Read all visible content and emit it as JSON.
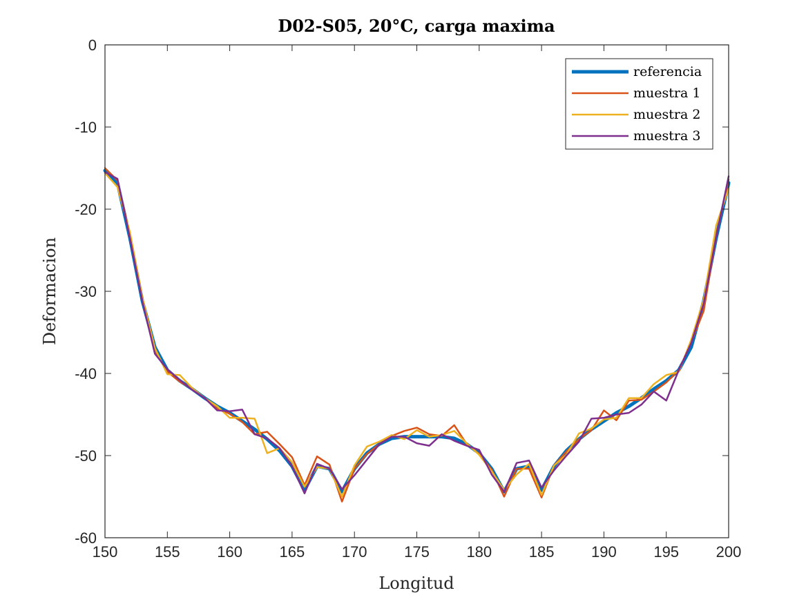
{
  "chart_data": {
    "type": "line",
    "title": "D02-S05, 20°C, carga maxima",
    "xlabel": "Longitud",
    "ylabel": "Deformacion",
    "xlim": [
      150,
      200
    ],
    "ylim": [
      -60,
      0
    ],
    "xticks": [
      150,
      155,
      160,
      165,
      170,
      175,
      180,
      185,
      190,
      195,
      200
    ],
    "yticks": [
      0,
      -10,
      -20,
      -30,
      -40,
      -50,
      -60
    ],
    "xtick_labels": [
      "150",
      "155",
      "160",
      "165",
      "170",
      "175",
      "180",
      "185",
      "190",
      "195",
      "200"
    ],
    "ytick_labels": [
      "0",
      "-10",
      "-20",
      "-30",
      "-40",
      "-50",
      "-60"
    ],
    "grid": false,
    "legend_position": "top-right",
    "x": [
      150,
      151,
      152,
      153,
      154,
      155,
      156,
      157,
      158,
      159,
      160,
      161,
      162,
      163,
      164,
      165,
      166,
      167,
      168,
      169,
      170,
      171,
      172,
      173,
      174,
      175,
      176,
      177,
      178,
      179,
      180,
      181,
      182,
      183,
      184,
      185,
      186,
      187,
      188,
      189,
      190,
      191,
      192,
      193,
      194,
      195,
      196,
      197,
      198,
      199,
      200
    ],
    "series": [
      {
        "name": "referencia",
        "color": "#0072BD",
        "width": 5,
        "values": [
          -15.3,
          -16.8,
          -23.5,
          -31.2,
          -36.8,
          -39.6,
          -40.9,
          -41.9,
          -43.0,
          -44.0,
          -44.8,
          -45.8,
          -46.8,
          -48.0,
          -49.4,
          -51.3,
          -54.2,
          -51.3,
          -51.6,
          -54.4,
          -51.6,
          -49.7,
          -48.6,
          -47.9,
          -47.7,
          -47.7,
          -47.7,
          -47.7,
          -47.9,
          -48.6,
          -49.7,
          -51.6,
          -54.4,
          -51.6,
          -51.3,
          -54.2,
          -51.3,
          -49.4,
          -48.0,
          -46.8,
          -45.8,
          -44.8,
          -44.0,
          -43.0,
          -41.9,
          -40.9,
          -39.6,
          -36.8,
          -31.2,
          -23.5,
          -16.8
        ]
      },
      {
        "name": "muestra 1",
        "color": "#D95319",
        "width": 2.5,
        "values": [
          -15.0,
          -16.5,
          -23.0,
          -30.8,
          -37.3,
          -39.8,
          -41.0,
          -41.9,
          -43.0,
          -44.3,
          -44.9,
          -45.9,
          -47.4,
          -47.1,
          -48.6,
          -50.2,
          -53.6,
          -50.1,
          -51.1,
          -55.6,
          -51.6,
          -49.8,
          -48.6,
          -47.6,
          -47.0,
          -46.6,
          -47.4,
          -47.6,
          -46.3,
          -48.6,
          -49.8,
          -51.7,
          -55.0,
          -51.6,
          -51.6,
          -55.1,
          -51.2,
          -49.5,
          -48.0,
          -46.9,
          -44.5,
          -45.7,
          -43.3,
          -43.2,
          -42.2,
          -41.1,
          -39.6,
          -36.2,
          -32.4,
          -23.3,
          -16.4
        ]
      },
      {
        "name": "muestra 2",
        "color": "#EDB120",
        "width": 2.5,
        "values": [
          -15.6,
          -17.3,
          -22.8,
          -30.8,
          -36.9,
          -40.1,
          -40.2,
          -41.8,
          -43.0,
          -44.0,
          -45.4,
          -45.4,
          -45.5,
          -49.7,
          -49.1,
          -50.8,
          -53.8,
          -51.4,
          -51.6,
          -55.0,
          -51.2,
          -48.9,
          -48.3,
          -47.5,
          -48.0,
          -46.9,
          -47.7,
          -47.5,
          -47.0,
          -48.5,
          -49.9,
          -51.9,
          -54.2,
          -52.3,
          -51.0,
          -54.8,
          -51.2,
          -49.9,
          -47.3,
          -46.7,
          -45.6,
          -45.4,
          -43.0,
          -43.0,
          -41.3,
          -40.2,
          -39.8,
          -35.9,
          -31.0,
          -22.0,
          -17.5
        ]
      },
      {
        "name": "muestra 3",
        "color": "#7E2F8E",
        "width": 2.5,
        "values": [
          -15.5,
          -16.3,
          -23.5,
          -31.2,
          -37.6,
          -39.5,
          -40.8,
          -42.0,
          -43.0,
          -44.5,
          -44.6,
          -44.4,
          -47.4,
          -47.9,
          -49.1,
          -51.3,
          -54.6,
          -51.0,
          -51.6,
          -54.1,
          -52.4,
          -50.5,
          -48.6,
          -47.7,
          -47.7,
          -48.5,
          -48.8,
          -47.4,
          -48.2,
          -48.8,
          -49.3,
          -52.3,
          -54.4,
          -50.9,
          -50.6,
          -53.9,
          -51.8,
          -50.0,
          -48.3,
          -45.5,
          -45.4,
          -45.0,
          -44.8,
          -43.8,
          -42.2,
          -43.3,
          -39.6,
          -36.3,
          -31.5,
          -23.4,
          -16.0
        ]
      }
    ]
  }
}
